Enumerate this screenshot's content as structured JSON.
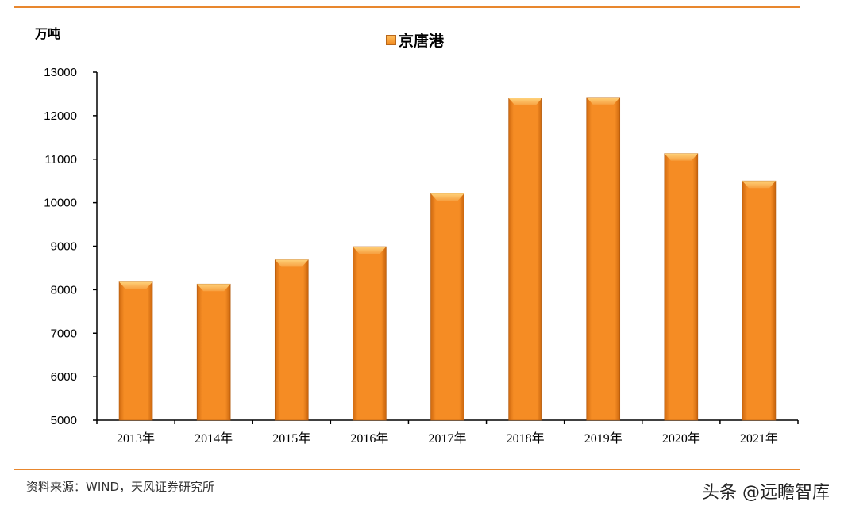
{
  "chart_data": {
    "type": "bar",
    "ylabel": "万吨",
    "categories": [
      "2013年",
      "2014年",
      "2015年",
      "2016年",
      "2017年",
      "2018年",
      "2019年",
      "2020年",
      "2021年"
    ],
    "series": [
      {
        "name": "京唐港",
        "values": [
          8180,
          8130,
          8690,
          8990,
          10210,
          12400,
          12420,
          11130,
          10500
        ]
      }
    ],
    "ylim": [
      5000,
      13000
    ],
    "yticks": [
      5000,
      6000,
      7000,
      8000,
      9000,
      10000,
      11000,
      12000,
      13000
    ],
    "grid": false,
    "legend": "top-center",
    "bar_color": "#f28a1e"
  },
  "source": "资料来源：WIND，天风证券研究所",
  "watermark": "头条 @远瞻智库",
  "rule_color": "#e8872e"
}
